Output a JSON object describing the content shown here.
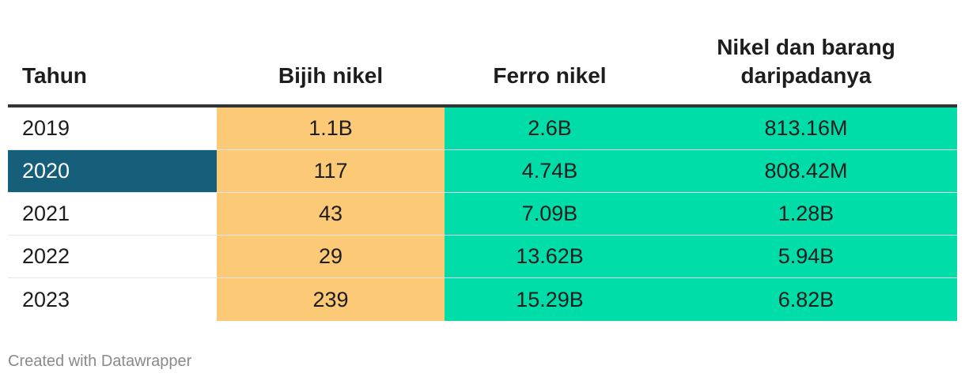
{
  "chart_data": {
    "type": "table",
    "columns": [
      "Tahun",
      "Bijih nikel",
      "Ferro nikel",
      "Nikel dan barang daripadanya"
    ],
    "header_lines": {
      "c3": [
        "Nikel dan barang",
        "daripadanya"
      ]
    },
    "rows": [
      {
        "year": "2019",
        "bijih": "1.1B",
        "ferro": "2.6B",
        "nikel": "813.16M"
      },
      {
        "year": "2020",
        "bijih": "117",
        "ferro": "4.74B",
        "nikel": "808.42M"
      },
      {
        "year": "2021",
        "bijih": "43",
        "ferro": "7.09B",
        "nikel": "1.28B"
      },
      {
        "year": "2022",
        "bijih": "29",
        "ferro": "13.62B",
        "nikel": "5.94B"
      },
      {
        "year": "2023",
        "bijih": "239",
        "ferro": "15.29B",
        "nikel": "6.82B"
      }
    ],
    "highlighted_row": "2020",
    "colors": {
      "bijih_column": "#fcc977",
      "ferro_column": "#00dda9",
      "nikel_column": "#00dda9",
      "highlight": "#155f7a"
    }
  },
  "footer": {
    "credit": "Created with Datawrapper"
  }
}
